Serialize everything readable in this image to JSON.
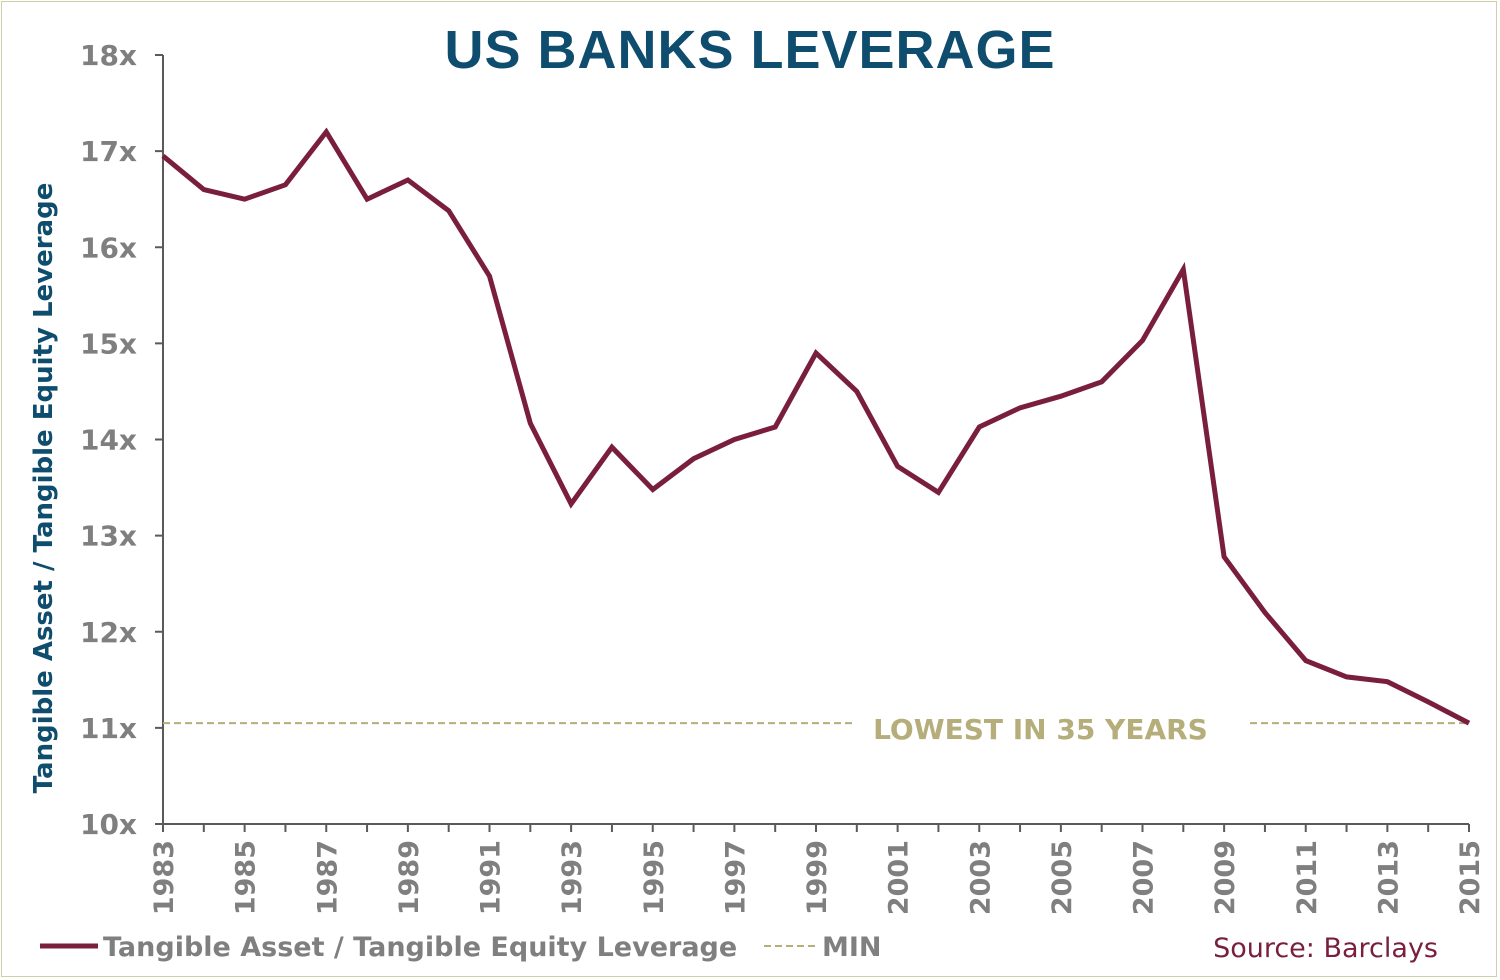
{
  "chart_data": {
    "type": "line",
    "title": "US BANKS LEVERAGE",
    "ylabel": "Tangible Asset / Tangible Equity Leverage",
    "xlabel": "",
    "ylim": [
      10,
      18
    ],
    "xlim": [
      1983,
      2015
    ],
    "y_ticks": [
      "10x",
      "11x",
      "12x",
      "13x",
      "14x",
      "15x",
      "16x",
      "17x",
      "18x"
    ],
    "x_ticks": [
      "1983",
      "1985",
      "1987",
      "1989",
      "1991",
      "1993",
      "1995",
      "1997",
      "1999",
      "2001",
      "2003",
      "2005",
      "2007",
      "2009",
      "2011",
      "2013",
      "2015"
    ],
    "grid": false,
    "legend_position": "bottom-left",
    "series": [
      {
        "name": "Tangible Asset / Tangible Equity Leverage",
        "color": "#7a1e3e",
        "x": [
          1983,
          1984,
          1985,
          1986,
          1987,
          1988,
          1989,
          1990,
          1991,
          1992,
          1993,
          1994,
          1995,
          1996,
          1997,
          1998,
          1999,
          2000,
          2001,
          2002,
          2003,
          2004,
          2005,
          2006,
          2007,
          2008,
          2009,
          2010,
          2011,
          2012,
          2013,
          2014,
          2015
        ],
        "values": [
          16.95,
          16.6,
          16.5,
          16.65,
          17.2,
          16.5,
          16.7,
          16.38,
          15.7,
          14.17,
          13.33,
          13.92,
          13.48,
          13.8,
          14.0,
          14.13,
          14.9,
          14.5,
          13.72,
          13.45,
          14.13,
          14.33,
          14.45,
          14.6,
          15.03,
          15.77,
          12.78,
          12.2,
          11.7,
          11.53,
          11.48,
          11.27,
          11.05
        ]
      },
      {
        "name": "MIN",
        "color": "#b5ad7a",
        "dashed": true,
        "x": [
          1983,
          2015
        ],
        "values": [
          11.05,
          11.05
        ]
      }
    ],
    "annotations": [
      {
        "text": "LOWEST IN 35 YEARS",
        "x": 2004.5,
        "y": 11.05
      }
    ],
    "source": "Source: Barclays"
  }
}
